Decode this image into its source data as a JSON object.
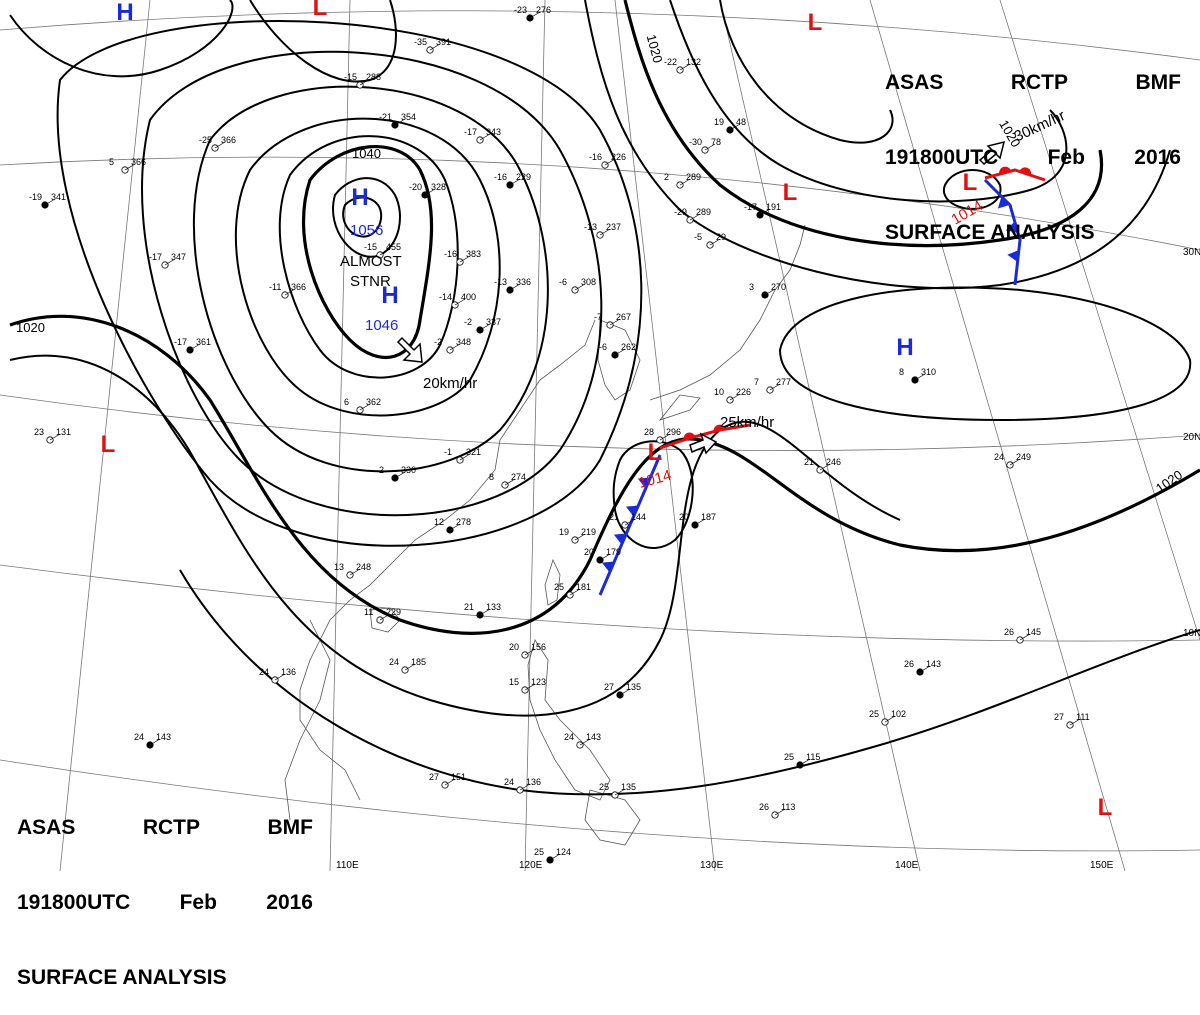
{
  "header": {
    "line1": [
      "ASAS",
      "RCTP",
      "BMF"
    ],
    "line2": [
      "191800UTC",
      "Feb",
      "2016"
    ],
    "line3": "SURFACE ANALYSIS"
  },
  "colors": {
    "high": "#1a2bd6",
    "low": "#e01010",
    "front_cold": "#1a2bd6",
    "front_warm": "#e01010"
  },
  "lat_labels": [
    "30N",
    "20N",
    "10N"
  ],
  "lon_labels": [
    "110E",
    "120E",
    "130E",
    "140E",
    "150E"
  ],
  "isobar_labels": [
    "1040",
    "1020",
    "1020",
    "1020",
    "1020"
  ],
  "pressure_centers": [
    {
      "type": "H",
      "value": "1056"
    },
    {
      "type": "H",
      "value": "1046"
    },
    {
      "type": "H",
      "value": ""
    },
    {
      "type": "H",
      "value": ""
    },
    {
      "type": "L",
      "value": "1014"
    },
    {
      "type": "L",
      "value": "1014"
    },
    {
      "type": "L",
      "value": ""
    },
    {
      "type": "L",
      "value": ""
    },
    {
      "type": "L",
      "value": ""
    },
    {
      "type": "L",
      "value": ""
    },
    {
      "type": "L",
      "value": ""
    }
  ],
  "annotations": {
    "almost_stnr_1": "ALMOST",
    "almost_stnr_2": "STNR",
    "motion_1": "20km/hr",
    "motion_2": "25km/hr",
    "motion_3": "30km/hr"
  },
  "stations": [
    {
      "t": "-23",
      "p": "276"
    },
    {
      "t": "-35",
      "p": "391"
    },
    {
      "t": "-15",
      "p": "288"
    },
    {
      "t": "-21",
      "p": "354"
    },
    {
      "t": "-17",
      "p": "343"
    },
    {
      "t": "-16",
      "p": "226"
    },
    {
      "t": "-16",
      "p": "229"
    },
    {
      "t": "-13",
      "p": "237"
    },
    {
      "t": "-6",
      "p": "308"
    },
    {
      "t": "-13",
      "p": "336"
    },
    {
      "t": "-14",
      "p": "400"
    },
    {
      "t": "-16",
      "p": "383"
    },
    {
      "t": "-2",
      "p": "337"
    },
    {
      "t": "-2",
      "p": "348"
    },
    {
      "t": "-15",
      "p": "455"
    },
    {
      "t": "-20",
      "p": "328"
    },
    {
      "t": "-25",
      "p": "366"
    },
    {
      "t": "5",
      "p": "366"
    },
    {
      "t": "-19",
      "p": "341"
    },
    {
      "t": "-17",
      "p": "347"
    },
    {
      "t": "-11",
      "p": "366"
    },
    {
      "t": "-17",
      "p": "361"
    },
    {
      "t": "6",
      "p": "362"
    },
    {
      "t": "-1",
      "p": "321"
    },
    {
      "t": "2",
      "p": "330"
    },
    {
      "t": "23",
      "p": "131"
    },
    {
      "t": "8",
      "p": "274"
    },
    {
      "t": "12",
      "p": "278"
    },
    {
      "t": "13",
      "p": "248"
    },
    {
      "t": "11",
      "p": "229"
    },
    {
      "t": "21",
      "p": "133"
    },
    {
      "t": "24",
      "p": "185"
    },
    {
      "t": "24",
      "p": "136"
    },
    {
      "t": "24",
      "p": "143"
    },
    {
      "t": "27",
      "p": "151"
    },
    {
      "t": "24",
      "p": "136"
    },
    {
      "t": "25",
      "p": "124"
    },
    {
      "t": "20",
      "p": "156"
    },
    {
      "t": "15",
      "p": "123"
    },
    {
      "t": "27",
      "p": "135"
    },
    {
      "t": "24",
      "p": "143"
    },
    {
      "t": "25",
      "p": "135"
    },
    {
      "t": "-6",
      "p": "262"
    },
    {
      "t": "-7",
      "p": "267"
    },
    {
      "t": "2",
      "p": "289"
    },
    {
      "t": "3",
      "p": "270"
    },
    {
      "t": "-22",
      "p": "132"
    },
    {
      "t": "-30",
      "p": "78"
    },
    {
      "t": "19",
      "p": "48"
    },
    {
      "t": "-29",
      "p": "289"
    },
    {
      "t": "-5",
      "p": "29"
    },
    {
      "t": "-17",
      "p": "191"
    },
    {
      "t": "7",
      "p": "277"
    },
    {
      "t": "10",
      "p": "226"
    },
    {
      "t": "8",
      "p": "310"
    },
    {
      "t": "24",
      "p": "249"
    },
    {
      "t": "21",
      "p": "246"
    },
    {
      "t": "20",
      "p": "187"
    },
    {
      "t": "21",
      "p": "144"
    },
    {
      "t": "19",
      "p": "219"
    },
    {
      "t": "20",
      "p": "179"
    },
    {
      "t": "25",
      "p": "181"
    },
    {
      "t": "26",
      "p": "145"
    },
    {
      "t": "26",
      "p": "143"
    },
    {
      "t": "25",
      "p": "102"
    },
    {
      "t": "27",
      "p": "111"
    },
    {
      "t": "25",
      "p": "115"
    },
    {
      "t": "26",
      "p": "113"
    },
    {
      "t": "28",
      "p": "296"
    }
  ]
}
